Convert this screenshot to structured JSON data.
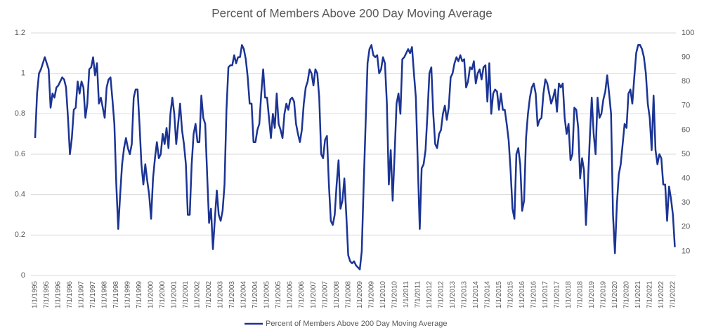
{
  "chart_data": {
    "type": "line",
    "title": "Percent of Members Above 200 Day Moving Average",
    "categories": [
      "1/1/1995",
      null,
      null,
      null,
      null,
      null,
      "7/1/1995",
      null,
      null,
      null,
      null,
      null,
      "1/1/1996",
      null,
      null,
      null,
      null,
      null,
      "7/1/1996",
      null,
      null,
      null,
      null,
      null,
      "1/1/1997",
      null,
      null,
      null,
      null,
      null,
      "7/1/1997",
      null,
      null,
      null,
      null,
      null,
      "1/1/1998",
      null,
      null,
      null,
      null,
      null,
      "7/1/1998",
      null,
      null,
      null,
      null,
      null,
      "1/1/1999",
      null,
      null,
      null,
      null,
      null,
      "7/1/1999",
      null,
      null,
      null,
      null,
      null,
      "1/1/2000",
      null,
      null,
      null,
      null,
      null,
      "7/1/2000",
      null,
      null,
      null,
      null,
      null,
      "1/1/2001",
      null,
      null,
      null,
      null,
      null,
      "7/1/2001",
      null,
      null,
      null,
      null,
      null,
      "1/1/2002",
      null,
      null,
      null,
      null,
      null,
      "7/1/2002",
      null,
      null,
      null,
      null,
      null,
      "1/1/2003",
      null,
      null,
      null,
      null,
      null,
      "7/1/2003",
      null,
      null,
      null,
      null,
      null,
      "1/1/2004",
      null,
      null,
      null,
      null,
      null,
      "7/1/2004",
      null,
      null,
      null,
      null,
      null,
      "1/1/2005",
      null,
      null,
      null,
      null,
      null,
      "7/1/2005",
      null,
      null,
      null,
      null,
      null,
      "1/1/2006",
      null,
      null,
      null,
      null,
      null,
      "7/1/2006",
      null,
      null,
      null,
      null,
      null,
      "1/1/2007",
      null,
      null,
      null,
      null,
      null,
      "7/1/2007",
      null,
      null,
      null,
      null,
      null,
      "1/1/2008",
      null,
      null,
      null,
      null,
      null,
      "7/1/2008",
      null,
      null,
      null,
      null,
      null,
      "1/1/2009",
      null,
      null,
      null,
      null,
      null,
      "7/1/2009",
      null,
      null,
      null,
      null,
      null,
      "1/1/2010",
      null,
      null,
      null,
      null,
      null,
      "7/1/2010",
      null,
      null,
      null,
      null,
      null,
      "1/1/2011",
      null,
      null,
      null,
      null,
      null,
      "7/1/2011",
      null,
      null,
      null,
      null,
      null,
      "1/1/2012",
      null,
      null,
      null,
      null,
      null,
      "7/1/2012",
      null,
      null,
      null,
      null,
      null,
      "1/1/2013",
      null,
      null,
      null,
      null,
      null,
      "7/1/2013",
      null,
      null,
      null,
      null,
      null,
      "1/1/2014",
      null,
      null,
      null,
      null,
      null,
      "7/1/2014",
      null,
      null,
      null,
      null,
      null,
      "1/1/2015",
      null,
      null,
      null,
      null,
      null,
      "7/1/2015",
      null,
      null,
      null,
      null,
      null,
      "1/1/2016",
      null,
      null,
      null,
      null,
      null,
      "7/1/2016",
      null,
      null,
      null,
      null,
      null,
      "1/1/2017",
      null,
      null,
      null,
      null,
      null,
      "7/1/2017",
      null,
      null,
      null,
      null,
      null,
      "1/1/2018",
      null,
      null,
      null,
      null,
      null,
      "7/1/2018",
      null,
      null,
      null,
      null,
      null,
      "1/1/2019",
      null,
      null,
      null,
      null,
      null,
      "7/1/2019",
      null,
      null,
      null,
      null,
      null,
      "1/1/2020",
      null,
      null,
      null,
      null,
      null,
      "7/1/2020",
      null,
      null,
      null,
      null,
      null,
      "1/1/2021",
      null,
      null,
      null,
      null,
      null,
      "7/1/2021",
      null,
      null,
      null,
      null,
      null,
      "1/1/2022",
      null,
      null,
      null,
      null,
      null,
      "7/1/2022",
      null
    ],
    "series": [
      {
        "name": "Percent of Members Above 200 Day Moving Average",
        "color": "#1b3494",
        "values": [
          0.68,
          0.9,
          1.0,
          1.02,
          1.05,
          1.08,
          1.05,
          1.02,
          0.83,
          0.9,
          0.88,
          0.93,
          0.94,
          0.96,
          0.98,
          0.97,
          0.93,
          0.78,
          0.6,
          0.68,
          0.82,
          0.83,
          0.96,
          0.9,
          0.96,
          0.93,
          0.78,
          0.85,
          1.02,
          1.03,
          1.08,
          0.99,
          1.05,
          0.85,
          0.88,
          0.83,
          0.78,
          0.93,
          0.97,
          0.98,
          0.87,
          0.75,
          0.45,
          0.23,
          0.4,
          0.55,
          0.63,
          0.68,
          0.63,
          0.6,
          0.65,
          0.88,
          0.92,
          0.92,
          0.75,
          0.55,
          0.45,
          0.55,
          0.47,
          0.4,
          0.28,
          0.48,
          0.58,
          0.66,
          0.58,
          0.6,
          0.7,
          0.65,
          0.73,
          0.63,
          0.8,
          0.88,
          0.8,
          0.65,
          0.75,
          0.85,
          0.72,
          0.65,
          0.55,
          0.3,
          0.3,
          0.55,
          0.7,
          0.75,
          0.66,
          0.66,
          0.89,
          0.78,
          0.75,
          0.5,
          0.26,
          0.33,
          0.13,
          0.28,
          0.42,
          0.3,
          0.27,
          0.32,
          0.45,
          0.82,
          1.03,
          1.04,
          1.04,
          1.09,
          1.05,
          1.08,
          1.08,
          1.14,
          1.12,
          1.07,
          0.98,
          0.85,
          0.85,
          0.66,
          0.66,
          0.72,
          0.75,
          0.9,
          1.02,
          0.88,
          0.88,
          0.78,
          0.68,
          0.8,
          0.73,
          0.9,
          0.75,
          0.72,
          0.68,
          0.8,
          0.85,
          0.82,
          0.87,
          0.88,
          0.86,
          0.75,
          0.7,
          0.66,
          0.72,
          0.85,
          0.93,
          0.96,
          1.02,
          1.0,
          0.94,
          1.02,
          1.0,
          0.88,
          0.6,
          0.58,
          0.67,
          0.69,
          0.45,
          0.27,
          0.25,
          0.3,
          0.45,
          0.57,
          0.33,
          0.37,
          0.48,
          0.3,
          0.1,
          0.07,
          0.06,
          0.07,
          0.05,
          0.04,
          0.03,
          0.12,
          0.45,
          0.75,
          1.05,
          1.12,
          1.14,
          1.09,
          1.08,
          1.09,
          1.0,
          1.02,
          1.08,
          1.05,
          0.85,
          0.45,
          0.62,
          0.37,
          0.6,
          0.85,
          0.9,
          0.8,
          1.07,
          1.08,
          1.1,
          1.12,
          1.1,
          1.13,
          1.0,
          0.88,
          0.55,
          0.23,
          0.53,
          0.55,
          0.62,
          0.8,
          1.0,
          1.03,
          0.8,
          0.65,
          0.63,
          0.7,
          0.72,
          0.8,
          0.84,
          0.77,
          0.83,
          0.98,
          1.0,
          1.05,
          1.08,
          1.06,
          1.09,
          1.06,
          1.07,
          0.93,
          0.96,
          1.03,
          1.02,
          1.06,
          0.95,
          1.0,
          1.02,
          0.97,
          1.03,
          1.04,
          0.86,
          1.05,
          0.8,
          0.9,
          0.92,
          0.91,
          0.82,
          0.9,
          0.82,
          0.82,
          0.75,
          0.67,
          0.52,
          0.33,
          0.28,
          0.6,
          0.63,
          0.55,
          0.32,
          0.37,
          0.68,
          0.8,
          0.88,
          0.93,
          0.95,
          0.9,
          0.74,
          0.77,
          0.78,
          0.9,
          0.97,
          0.95,
          0.9,
          0.85,
          0.88,
          0.92,
          0.81,
          0.95,
          0.93,
          0.95,
          0.78,
          0.7,
          0.75,
          0.57,
          0.6,
          0.83,
          0.82,
          0.73,
          0.48,
          0.58,
          0.52,
          0.25,
          0.45,
          0.68,
          0.88,
          0.7,
          0.6,
          0.88,
          0.78,
          0.8,
          0.87,
          0.91,
          0.99,
          0.9,
          0.8,
          0.3,
          0.11,
          0.35,
          0.5,
          0.55,
          0.65,
          0.75,
          0.73,
          0.9,
          0.92,
          0.85,
          0.98,
          1.1,
          1.14,
          1.14,
          1.12,
          1.08,
          1.0,
          0.85,
          0.78,
          0.62,
          0.89,
          0.62,
          0.55,
          0.6,
          0.58,
          0.45,
          0.45,
          0.27,
          0.44,
          0.38,
          0.3,
          0.14
        ]
      }
    ],
    "ylim": [
      0,
      1.2
    ],
    "yticks": [
      0,
      0.2,
      0.4,
      0.6,
      0.8,
      1,
      1.2
    ],
    "y2lim": [
      0,
      100
    ],
    "y2ticks": [
      10,
      20,
      30,
      40,
      50,
      60,
      70,
      80,
      90,
      100
    ],
    "grid": true,
    "legend": "bottom"
  }
}
